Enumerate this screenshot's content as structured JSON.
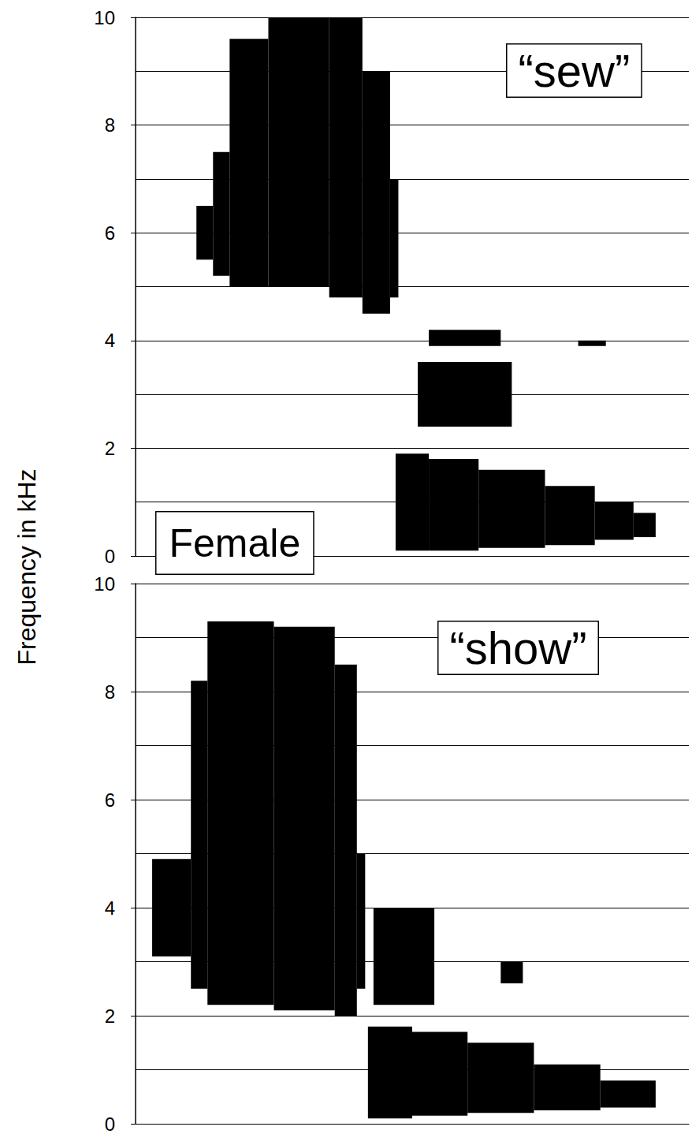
{
  "ylabel": "Frequency in kHz",
  "annotations": [
    "Female"
  ],
  "chart_data": [
    {
      "type": "spectrogram",
      "title": "“sew”",
      "color": "#000000",
      "grid": true,
      "tick_labels": "y",
      "xlim": [
        0,
        100
      ],
      "ylim": [
        0,
        10
      ],
      "yticks": [
        0,
        2,
        4,
        6,
        8,
        10
      ],
      "regions": [
        [
          11,
          14,
          5.5,
          6.5
        ],
        [
          14,
          17,
          5.2,
          7.5
        ],
        [
          17,
          24,
          5.0,
          9.6
        ],
        [
          24,
          35,
          5.0,
          10
        ],
        [
          35,
          41,
          4.8,
          10
        ],
        [
          41,
          46,
          4.5,
          9.0
        ],
        [
          46,
          47.5,
          4.8,
          7.0
        ],
        [
          47,
          53,
          0.1,
          1.9
        ],
        [
          53,
          62,
          0.1,
          1.8
        ],
        [
          62,
          74,
          0.15,
          1.6
        ],
        [
          74,
          83,
          0.2,
          1.3
        ],
        [
          83,
          90,
          0.3,
          1.0
        ],
        [
          90,
          94,
          0.35,
          0.8
        ],
        [
          51,
          68,
          2.4,
          3.6
        ],
        [
          53,
          66,
          3.9,
          4.2
        ],
        [
          80,
          85,
          3.9,
          4.0
        ]
      ]
    },
    {
      "type": "spectrogram",
      "title": "“show”",
      "color": "#000000",
      "grid": true,
      "tick_labels": "y",
      "xlim": [
        0,
        100
      ],
      "ylim": [
        0,
        10
      ],
      "yticks": [
        0,
        2,
        4,
        6,
        8,
        10
      ],
      "regions": [
        [
          3,
          10,
          3.1,
          4.9
        ],
        [
          10,
          13,
          2.5,
          8.2
        ],
        [
          13,
          25,
          2.2,
          9.3
        ],
        [
          25,
          36,
          2.1,
          9.2
        ],
        [
          36,
          40,
          2.0,
          8.5
        ],
        [
          40,
          41.5,
          2.5,
          5.0
        ],
        [
          42,
          50,
          0.1,
          1.8
        ],
        [
          50,
          60,
          0.15,
          1.7
        ],
        [
          60,
          72,
          0.2,
          1.5
        ],
        [
          72,
          84,
          0.25,
          1.1
        ],
        [
          84,
          94,
          0.3,
          0.8
        ],
        [
          43,
          54,
          2.2,
          4.0
        ],
        [
          66,
          70,
          2.6,
          3.0
        ]
      ]
    }
  ]
}
